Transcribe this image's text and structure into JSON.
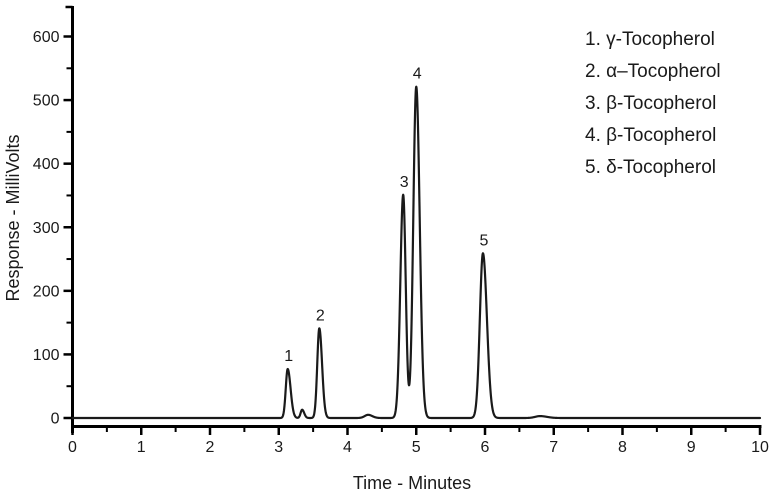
{
  "figure": {
    "background": "#ffffff",
    "trace_color": "#1a1a1a",
    "axis_color": "#000000",
    "text_color": "#1a1a1a"
  },
  "axes": {
    "x": {
      "title": "Time - Minutes",
      "min": 0,
      "max": 10,
      "major_step": 1,
      "minor_step": 0.5,
      "tick_labels": [
        "0",
        "1",
        "2",
        "3",
        "4",
        "5",
        "6",
        "7",
        "8",
        "9",
        "10"
      ]
    },
    "y": {
      "title": "Response - MilliVolts",
      "min": 0,
      "max": 646,
      "major_step": 100,
      "minor_step": 50,
      "tick_labels": [
        "0",
        "100",
        "200",
        "300",
        "400",
        "500",
        "600"
      ]
    }
  },
  "legend": {
    "items": [
      {
        "text": "1. γ-Tocopherol"
      },
      {
        "text": "2. α–Tocopherol"
      },
      {
        "text": "3. β-Tocopherol"
      },
      {
        "text": "4. β-Tocopherol"
      },
      {
        "text": "5. δ-Tocopherol"
      }
    ]
  },
  "chart_data": {
    "type": "line",
    "title": "",
    "xlabel": "Time - Minutes",
    "ylabel": "Response - MilliVolts",
    "xlim": [
      0,
      10
    ],
    "ylim": [
      0,
      646
    ],
    "grid": false,
    "legend_position": "top-right",
    "series_name": "HPLC chromatogram of tocopherols",
    "baseline_mV": 0,
    "peaks": [
      {
        "label": "1",
        "compound": "γ-Tocopherol",
        "retention_time_min": 3.13,
        "height_mV": 77,
        "sigma_left": 0.028,
        "sigma_right": 0.042
      },
      {
        "label": "2",
        "compound": "α–Tocopherol",
        "retention_time_min": 3.59,
        "height_mV": 141,
        "sigma_left": 0.03,
        "sigma_right": 0.04
      },
      {
        "label": "3",
        "compound": "β-Tocopherol",
        "retention_time_min": 4.81,
        "height_mV": 351,
        "sigma_left": 0.042,
        "sigma_right": 0.037
      },
      {
        "label": "4",
        "compound": "β-Tocopherol",
        "retention_time_min": 5.0,
        "height_mV": 521,
        "sigma_left": 0.043,
        "sigma_right": 0.05
      },
      {
        "label": "5",
        "compound": "δ-Tocopherol",
        "retention_time_min": 5.97,
        "height_mV": 259,
        "sigma_left": 0.045,
        "sigma_right": 0.058
      }
    ],
    "minor_features": [
      {
        "retention_time_min": 3.34,
        "height_mV": 13,
        "sigma_left": 0.022,
        "sigma_right": 0.03
      },
      {
        "retention_time_min": 4.3,
        "height_mV": 5,
        "sigma_left": 0.05,
        "sigma_right": 0.06
      },
      {
        "retention_time_min": 6.8,
        "height_mV": 3,
        "sigma_left": 0.07,
        "sigma_right": 0.1
      }
    ]
  }
}
